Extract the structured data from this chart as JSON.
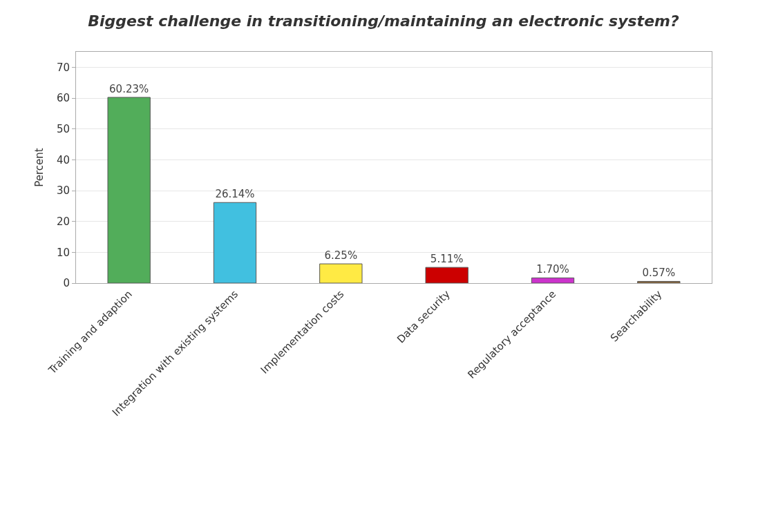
{
  "chart_data": {
    "type": "bar",
    "title": "Biggest challenge in transitioning/maintaining an electronic system?",
    "ylabel": "Percent",
    "categories": [
      "Training and adaption",
      "Integration with existing systems",
      "Implementation costs",
      "Data security",
      "Regulatory acceptance",
      "Searchability"
    ],
    "values": [
      60.23,
      26.14,
      6.25,
      5.11,
      1.7,
      0.57
    ],
    "value_labels": [
      "60.23%",
      "26.14%",
      "6.25%",
      "5.11%",
      "1.70%",
      "0.57%"
    ],
    "colors": [
      "#52ad5a",
      "#41c0e0",
      "#ffea44",
      "#cc0000",
      "#cc33cc",
      "#8b6a3e"
    ],
    "ylim": [
      0,
      75
    ],
    "yticks": [
      0,
      10,
      20,
      30,
      40,
      50,
      60,
      70
    ],
    "grid": "y",
    "legend": false
  }
}
